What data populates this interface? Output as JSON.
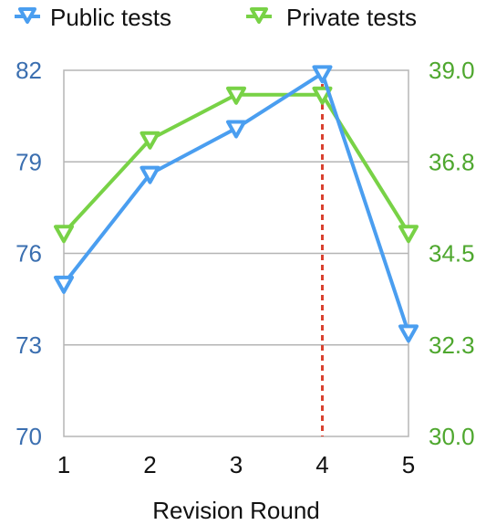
{
  "chart_data": {
    "type": "line",
    "xlabel": "Revision Round",
    "x": [
      1,
      2,
      3,
      4,
      5
    ],
    "x_tick_labels": [
      "1",
      "2",
      "3",
      "4",
      "5"
    ],
    "y_left": {
      "range": [
        70,
        82
      ],
      "ticks": [
        "82",
        "79",
        "76",
        "73",
        "70"
      ],
      "color": "#3b6fb0"
    },
    "y_right": {
      "range": [
        30.0,
        39.0
      ],
      "ticks": [
        "39.0",
        "36.8",
        "34.5",
        "32.3",
        "30.0"
      ],
      "color": "#4ea72e"
    },
    "grid": true,
    "legend_position": "top",
    "highlight_x": 4,
    "highlight_color": "#d8412f",
    "series": [
      {
        "name": "Public tests",
        "axis": "left",
        "color": "#4a9ef0",
        "values": [
          75.0,
          78.6,
          80.1,
          81.9,
          73.4
        ]
      },
      {
        "name": "Private tests",
        "axis": "right",
        "color": "#78d246",
        "values": [
          35.0,
          37.3,
          38.4,
          38.4,
          35.0
        ]
      }
    ]
  }
}
